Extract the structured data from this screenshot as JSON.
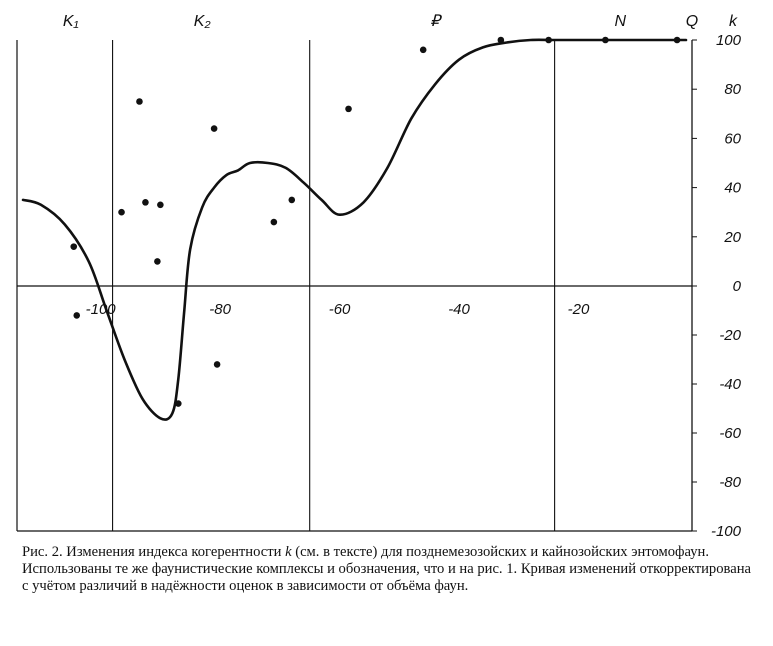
{
  "chart_data": {
    "type": "scatter",
    "title": "",
    "xlabel": "",
    "ylabel": "k",
    "xlim": [
      -114,
      -1
    ],
    "ylim": [
      -100,
      100
    ],
    "x_ticks": [
      -100,
      -80,
      -60,
      -40,
      -20
    ],
    "x_tick_labels": [
      "-100",
      "-80",
      "-60",
      "-40",
      "-20"
    ],
    "y_ticks": [
      100,
      80,
      60,
      40,
      20,
      0,
      -20,
      -40,
      -60,
      -80,
      -100
    ],
    "y_tick_labels": [
      "100",
      "80",
      "60",
      "40",
      "20",
      "0",
      "-20",
      "-40",
      "-60",
      "-80",
      "-100"
    ],
    "grid": "vertical period boundaries",
    "period_boundaries": [
      -98,
      -65,
      -24,
      -1
    ],
    "periods": [
      {
        "label": "K₁",
        "x": -105
      },
      {
        "label": "K₂",
        "x": -83
      },
      {
        "label": "₽",
        "x": -44
      },
      {
        "label": "N",
        "x": -13
      },
      {
        "label": "Q",
        "x": -1
      }
    ],
    "series": [
      {
        "kind": "points",
        "x": [
          -104.5,
          -104,
          -90,
          -87,
          -96.5,
          -93.5,
          -92.5,
          -90.5,
          -81,
          -80.5,
          -71,
          -68,
          -58.5,
          -46,
          -33,
          -25,
          -15.5,
          -3.5
        ],
        "y": [
          16,
          -12,
          33,
          -48,
          30,
          75,
          34,
          10,
          64,
          -32,
          26,
          35,
          72,
          96,
          100,
          100,
          100,
          100
        ]
      },
      {
        "kind": "curve",
        "x": [
          -113,
          -110,
          -106,
          -102,
          -99,
          -96,
          -93,
          -90,
          -88,
          -87,
          -86,
          -85,
          -83,
          -81,
          -79,
          -77,
          -75,
          -72,
          -69,
          -66,
          -63,
          -60,
          -56,
          -52,
          -48,
          -44,
          -40,
          -36,
          -32,
          -28,
          -24,
          -20,
          -16,
          -12,
          -8,
          -4,
          -2
        ],
        "y": [
          35,
          33,
          25,
          10,
          -10,
          -30,
          -46,
          -54,
          -52,
          -38,
          -10,
          15,
          32,
          40,
          45,
          47,
          50,
          50,
          48,
          42,
          35,
          29,
          34,
          48,
          68,
          82,
          92,
          97,
          99,
          100,
          100,
          100,
          100,
          100,
          100,
          100,
          100
        ]
      }
    ]
  },
  "caption": {
    "label": "Рис. 2.",
    "text_before_k": " Изменения индекса когерентности ",
    "k": "k",
    "text_after_k": " (см. в тексте) для позднемезозойских и кайнозойских энтомофаун. Использованы те же фаунистические комплексы и обозначения, что и на рис. 1. Кривая изменений откорректирована с учётом различий в надёжности оценок в зависимости от объёма фаун."
  }
}
